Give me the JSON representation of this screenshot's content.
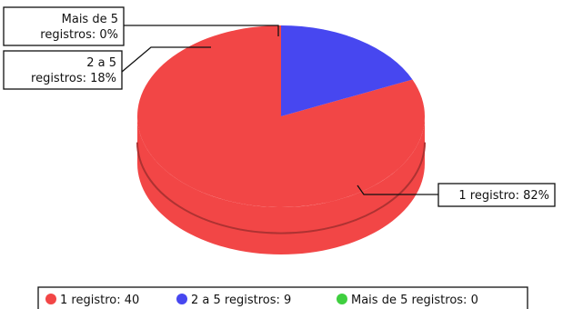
{
  "chart_data": {
    "type": "pie",
    "style": "3d",
    "categories": [
      "1 registro",
      "2 a 5 registros",
      "Mais de 5 registros"
    ],
    "values": [
      40,
      9,
      0
    ],
    "percents": [
      82,
      18,
      0
    ],
    "colors": [
      "#f24646",
      "#4747f0",
      "#3fcf3f"
    ],
    "legend_placement": "bottom",
    "callouts": [
      {
        "lines": [
          "1 registro:  82%"
        ]
      },
      {
        "lines": [
          "2 a 5",
          "registros:  18%"
        ]
      },
      {
        "lines": [
          "Mais de 5",
          "registros:  0%"
        ]
      }
    ],
    "legend": [
      {
        "label": "1 registro:  40"
      },
      {
        "label": "2 a 5 registros:  9"
      },
      {
        "label": "Mais de 5 registros:  0"
      }
    ]
  }
}
